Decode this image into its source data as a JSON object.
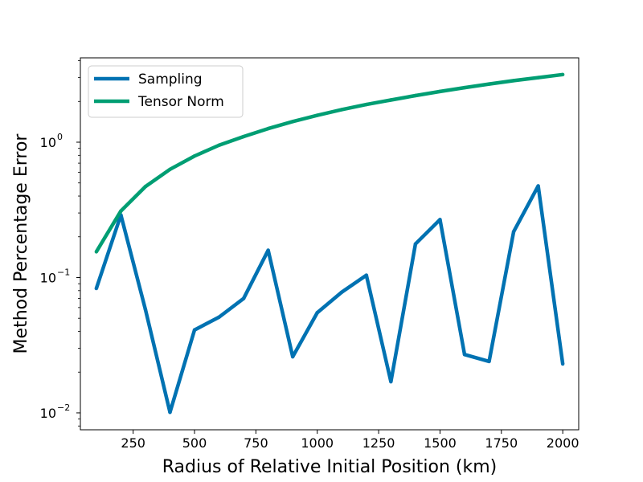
{
  "chart_data": {
    "type": "line",
    "xlabel": "Radius of Relative Initial Position (km)",
    "ylabel": "Method Percentage Error",
    "yscale": "log",
    "xlim": [
      35,
      2065
    ],
    "ylim": [
      0.0075,
      4.2
    ],
    "grid": false,
    "legend_position": "top-left",
    "x_ticks": [
      250,
      500,
      750,
      1000,
      1250,
      1500,
      1750,
      2000
    ],
    "x_tick_labels": [
      "250",
      "500",
      "750",
      "1000",
      "1250",
      "1500",
      "1750",
      "2000"
    ],
    "y_ticks": [
      0.01,
      0.1,
      1
    ],
    "y_tick_labels": [
      {
        "base": "10",
        "exp": "−2"
      },
      {
        "base": "10",
        "exp": "−1"
      },
      {
        "base": "10",
        "exp": "0"
      }
    ],
    "x": [
      100,
      200,
      300,
      400,
      500,
      600,
      700,
      800,
      900,
      1000,
      1100,
      1200,
      1300,
      1400,
      1500,
      1600,
      1700,
      1800,
      1900,
      2000
    ],
    "series": [
      {
        "name": "Sampling",
        "color": "#0072b2",
        "values": [
          0.083,
          0.29,
          0.058,
          0.0101,
          0.041,
          0.051,
          0.07,
          0.159,
          0.026,
          0.055,
          0.078,
          0.104,
          0.017,
          0.177,
          0.268,
          0.027,
          0.024,
          0.218,
          0.475,
          0.023
        ]
      },
      {
        "name": "Tensor Norm",
        "color": "#009e73",
        "values": [
          0.155,
          0.31,
          0.47,
          0.63,
          0.79,
          0.95,
          1.1,
          1.26,
          1.42,
          1.58,
          1.74,
          1.9,
          2.05,
          2.21,
          2.37,
          2.53,
          2.69,
          2.85,
          3.0,
          3.16
        ]
      }
    ]
  }
}
